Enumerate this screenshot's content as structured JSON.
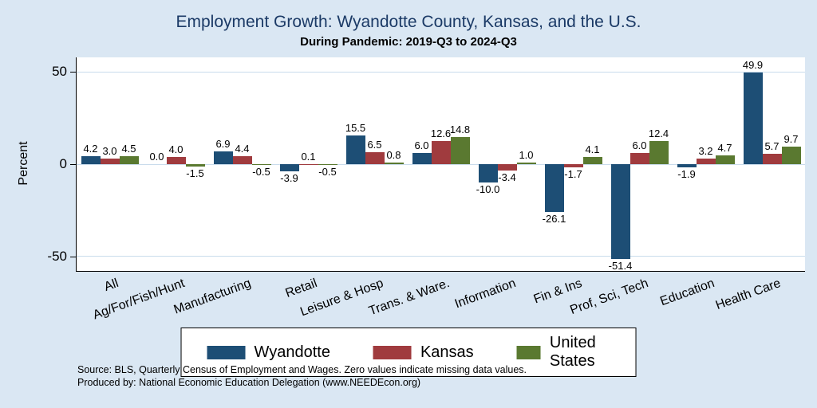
{
  "header": {
    "title": "Employment Growth: Wyandotte County, Kansas, and the U.S.",
    "subtitle": "During Pandemic: 2019-Q3 to 2024-Q3"
  },
  "axes": {
    "ylabel": "Percent"
  },
  "legend": [
    {
      "label": "Wyandotte",
      "color": "#1d4e75"
    },
    {
      "label": "Kansas",
      "color": "#a03b3e"
    },
    {
      "label": "United States",
      "color": "#5a7930"
    }
  ],
  "notes": [
    "Source: BLS, Quarterly Census of Employment and Wages. Zero values indicate missing data values.",
    "Produced by: National Economic Education Delegation (www.NEEDEcon.org)"
  ],
  "colors": {
    "background": "#dae7f3",
    "plot_background": "#ffffff",
    "gridline": "#c9dcec",
    "title": "#1b3a66"
  },
  "chart_data": {
    "type": "bar",
    "title": "Employment Growth: Wyandotte County, Kansas, and the U.S.",
    "subtitle": "During Pandemic: 2019-Q3 to 2024-Q3",
    "xlabel": "",
    "ylabel": "Percent",
    "categories": [
      "All",
      "Ag/For/Fish/Hunt",
      "Manufacturing",
      "Retail",
      "Leisure & Hosp",
      "Trans. & Ware.",
      "Information",
      "Fin & Ins",
      "Prof, Sci, Tech",
      "Education",
      "Health Care"
    ],
    "series": [
      {
        "name": "Wyandotte",
        "color": "#1d4e75",
        "values": [
          4.2,
          0.0,
          6.9,
          -3.9,
          15.5,
          6.0,
          -10.0,
          -26.1,
          -51.4,
          -1.9,
          49.9
        ]
      },
      {
        "name": "Kansas",
        "color": "#a03b3e",
        "values": [
          3.0,
          4.0,
          4.4,
          0.1,
          6.5,
          12.6,
          -3.4,
          -1.7,
          6.0,
          3.2,
          5.7
        ]
      },
      {
        "name": "United States",
        "color": "#5a7930",
        "values": [
          4.5,
          -1.5,
          -0.5,
          -0.5,
          0.8,
          14.8,
          1.0,
          4.1,
          12.4,
          4.7,
          9.7
        ]
      }
    ],
    "yticks": [
      50,
      0,
      -50
    ],
    "ylim": [
      -58,
      58
    ],
    "grid": true,
    "legend_position": "bottom"
  }
}
